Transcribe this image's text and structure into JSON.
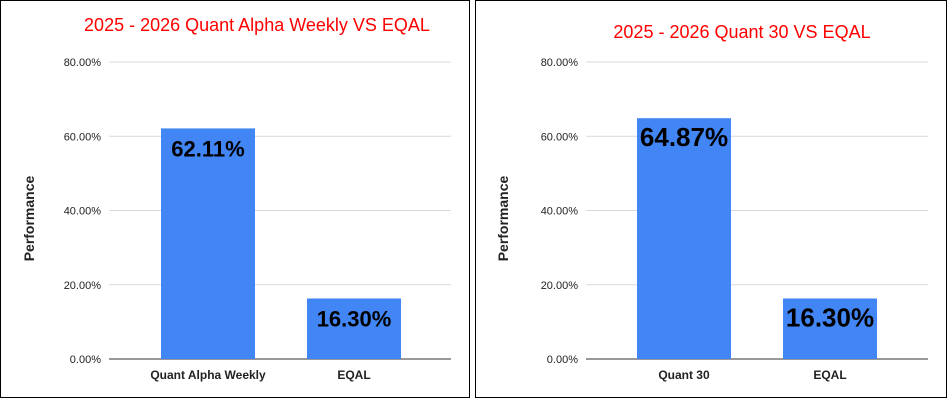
{
  "colors": {
    "bar": "#4285f4",
    "title": "#ff0000"
  },
  "chart_data": [
    {
      "type": "bar",
      "title": "2025 - 2026 Quant Alpha Weekly VS EQAL",
      "xlabel": "",
      "ylabel": "Performance",
      "ylim": [
        0,
        80
      ],
      "yticks": [
        "0.00%",
        "20.00%",
        "40.00%",
        "60.00%",
        "80.00%"
      ],
      "grid": true,
      "categories": [
        "Quant Alpha Weekly",
        "EQAL"
      ],
      "values": [
        62.11,
        16.3
      ],
      "data_labels": [
        "62.11%",
        "16.30%"
      ]
    },
    {
      "type": "bar",
      "title": "2025 - 2026 Quant 30 VS EQAL",
      "xlabel": "",
      "ylabel": "Performance",
      "ylim": [
        0,
        80
      ],
      "yticks": [
        "0.00%",
        "20.00%",
        "40.00%",
        "60.00%",
        "80.00%"
      ],
      "grid": true,
      "categories": [
        "Quant 30",
        "EQAL"
      ],
      "values": [
        64.87,
        16.3
      ],
      "data_labels": [
        "64.87%",
        "16.30%"
      ]
    }
  ]
}
